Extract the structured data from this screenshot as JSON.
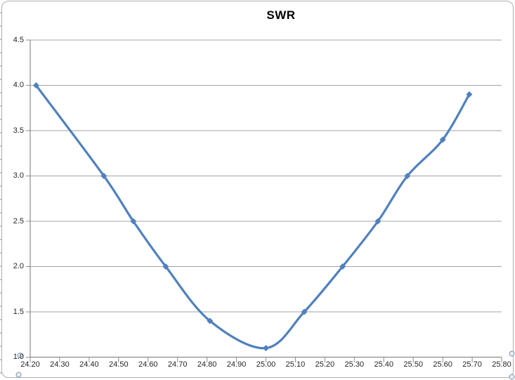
{
  "chart": {
    "title": "SWR",
    "colors": {
      "series": "#4F81BD",
      "gridline": "#A3A3A3",
      "axis_line": "#8C8C8C",
      "label": "#262626",
      "chart_border": "#ADADAD",
      "handle_stroke": "#8DA4BE",
      "handle_fill": "#E8EFF7"
    }
  },
  "chart_data": {
    "type": "line",
    "title": "SWR",
    "x": [
      24.22,
      24.45,
      24.55,
      24.66,
      24.81,
      25.0,
      25.13,
      25.26,
      25.38,
      25.48,
      25.6,
      25.69
    ],
    "values": [
      4.0,
      3.0,
      2.5,
      2.0,
      1.4,
      1.1,
      1.5,
      2.0,
      2.5,
      3.0,
      3.4,
      3.9
    ],
    "series_name": "SWR",
    "xlabel": "",
    "ylabel": "",
    "xlim": [
      24.2,
      25.8
    ],
    "ylim": [
      1.0,
      4.5
    ],
    "x_ticks": [
      "24.20",
      "24.30",
      "24.40",
      "24.50",
      "24.60",
      "24.70",
      "24.80",
      "24.90",
      "25.00",
      "25.10",
      "25.20",
      "25.30",
      "25.40",
      "25.50",
      "25.60",
      "25.70",
      "25.80"
    ],
    "y_ticks": [
      "4.5",
      "4.0",
      "3.5",
      "3.0",
      "2.5",
      "2.0",
      "1.5",
      "1.0"
    ],
    "grid": "horizontal",
    "legend": "none",
    "smooth": true,
    "marker": "diamond",
    "selection": "horizontal-axis-selected"
  }
}
